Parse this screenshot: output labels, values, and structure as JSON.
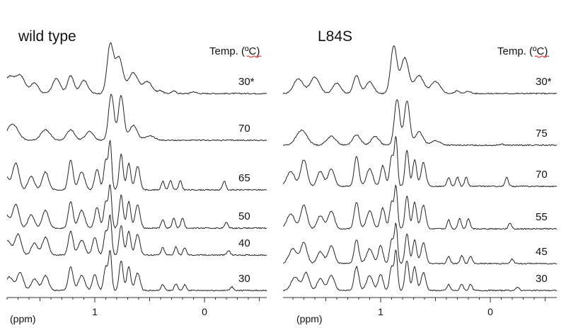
{
  "chart_data": [
    {
      "type": "line",
      "title": "wild type",
      "legend_header": {
        "prefix": "Temp. (",
        "unit": "ºC",
        "suffix": ")"
      },
      "xlabel": "(ppm)",
      "x_reversed": true,
      "xlim": [
        2.0,
        -0.55
      ],
      "x_ticks": [
        1,
        0
      ],
      "series": [
        {
          "name": "30*",
          "peaks": [
            [
              1.78,
              0.55,
              0.06
            ],
            [
              1.68,
              0.6,
              0.06
            ],
            [
              1.55,
              0.35,
              0.05
            ],
            [
              1.35,
              0.5,
              0.05
            ],
            [
              1.22,
              0.6,
              0.04
            ],
            [
              1.1,
              0.45,
              0.05
            ],
            [
              0.86,
              1.6,
              0.04
            ],
            [
              0.78,
              1.2,
              0.05
            ],
            [
              0.65,
              0.7,
              0.06
            ],
            [
              0.52,
              0.4,
              0.06
            ],
            [
              0.4,
              0.1,
              0.03
            ],
            [
              0.28,
              0.08,
              0.03
            ],
            [
              0.1,
              0.06,
              0.03
            ]
          ]
        },
        {
          "name": "70",
          "peaks": [
            [
              1.75,
              0.55,
              0.07
            ],
            [
              1.45,
              0.35,
              0.06
            ],
            [
              1.22,
              0.35,
              0.05
            ],
            [
              1.05,
              0.3,
              0.05
            ],
            [
              0.85,
              1.55,
              0.035
            ],
            [
              0.76,
              1.5,
              0.035
            ],
            [
              0.65,
              0.5,
              0.05
            ],
            [
              0.5,
              0.15,
              0.06
            ]
          ]
        },
        {
          "name": "65",
          "peaks": [
            [
              1.82,
              0.5,
              0.05
            ],
            [
              1.72,
              0.9,
              0.04
            ],
            [
              1.58,
              0.45,
              0.04
            ],
            [
              1.45,
              0.6,
              0.04
            ],
            [
              1.22,
              1.0,
              0.03
            ],
            [
              1.12,
              0.6,
              0.04
            ],
            [
              0.98,
              0.7,
              0.03
            ],
            [
              0.9,
              1.0,
              0.025
            ],
            [
              0.86,
              1.6,
              0.02
            ],
            [
              0.76,
              1.2,
              0.025
            ],
            [
              0.69,
              0.9,
              0.025
            ],
            [
              0.61,
              0.8,
              0.03
            ],
            [
              0.38,
              0.3,
              0.02
            ],
            [
              0.31,
              0.32,
              0.02
            ],
            [
              0.22,
              0.3,
              0.02
            ],
            [
              -0.18,
              0.3,
              0.02
            ]
          ]
        },
        {
          "name": "50",
          "peaks": [
            [
              1.82,
              0.5,
              0.05
            ],
            [
              1.72,
              0.8,
              0.04
            ],
            [
              1.58,
              0.45,
              0.04
            ],
            [
              1.45,
              0.6,
              0.04
            ],
            [
              1.22,
              0.9,
              0.03
            ],
            [
              1.12,
              0.6,
              0.04
            ],
            [
              0.98,
              0.7,
              0.03
            ],
            [
              0.9,
              0.9,
              0.025
            ],
            [
              0.86,
              1.4,
              0.02
            ],
            [
              0.76,
              1.1,
              0.025
            ],
            [
              0.69,
              0.9,
              0.025
            ],
            [
              0.61,
              0.8,
              0.03
            ],
            [
              0.38,
              0.3,
              0.02
            ],
            [
              0.28,
              0.35,
              0.02
            ],
            [
              0.2,
              0.35,
              0.02
            ],
            [
              -0.2,
              0.2,
              0.02
            ]
          ]
        },
        {
          "name": "40",
          "peaks": [
            [
              1.8,
              0.5,
              0.05
            ],
            [
              1.7,
              0.7,
              0.04
            ],
            [
              1.55,
              0.4,
              0.04
            ],
            [
              1.45,
              0.6,
              0.04
            ],
            [
              1.22,
              0.8,
              0.03
            ],
            [
              1.12,
              0.5,
              0.04
            ],
            [
              1.0,
              0.6,
              0.03
            ],
            [
              0.9,
              0.8,
              0.025
            ],
            [
              0.86,
              1.3,
              0.02
            ],
            [
              0.76,
              1.0,
              0.025
            ],
            [
              0.69,
              0.8,
              0.025
            ],
            [
              0.61,
              0.7,
              0.03
            ],
            [
              0.38,
              0.25,
              0.02
            ],
            [
              0.26,
              0.28,
              0.02
            ],
            [
              0.18,
              0.25,
              0.02
            ],
            [
              -0.22,
              0.15,
              0.02
            ]
          ]
        },
        {
          "name": "30",
          "peaks": [
            [
              1.78,
              0.45,
              0.05
            ],
            [
              1.68,
              0.6,
              0.04
            ],
            [
              1.55,
              0.4,
              0.04
            ],
            [
              1.45,
              0.5,
              0.04
            ],
            [
              1.22,
              0.8,
              0.03
            ],
            [
              1.12,
              0.5,
              0.04
            ],
            [
              1.0,
              0.55,
              0.03
            ],
            [
              0.9,
              0.8,
              0.025
            ],
            [
              0.86,
              1.3,
              0.02
            ],
            [
              0.76,
              1.0,
              0.025
            ],
            [
              0.69,
              0.8,
              0.025
            ],
            [
              0.61,
              0.6,
              0.03
            ],
            [
              0.38,
              0.2,
              0.02
            ],
            [
              0.26,
              0.22,
              0.02
            ],
            [
              0.18,
              0.2,
              0.02
            ],
            [
              -0.25,
              0.12,
              0.02
            ]
          ]
        }
      ]
    },
    {
      "type": "line",
      "title": "L84S",
      "legend_header": {
        "prefix": "Temp. (",
        "unit": "ºC",
        "suffix": ")"
      },
      "xlabel": "(ppm)",
      "x_reversed": true,
      "xlim": [
        2.0,
        -0.55
      ],
      "x_ticks": [
        1,
        0
      ],
      "series": [
        {
          "name": "30*",
          "peaks": [
            [
              1.75,
              0.5,
              0.06
            ],
            [
              1.6,
              0.55,
              0.06
            ],
            [
              1.4,
              0.35,
              0.05
            ],
            [
              1.22,
              0.6,
              0.04
            ],
            [
              1.1,
              0.4,
              0.05
            ],
            [
              0.88,
              1.6,
              0.04
            ],
            [
              0.78,
              1.2,
              0.05
            ],
            [
              0.65,
              0.6,
              0.06
            ],
            [
              0.5,
              0.4,
              0.06
            ],
            [
              0.3,
              0.1,
              0.03
            ],
            [
              0.2,
              0.08,
              0.03
            ]
          ]
        },
        {
          "name": "75",
          "peaks": [
            [
              1.72,
              0.5,
              0.07
            ],
            [
              1.45,
              0.3,
              0.06
            ],
            [
              1.22,
              0.35,
              0.05
            ],
            [
              1.05,
              0.3,
              0.05
            ],
            [
              0.85,
              1.55,
              0.035
            ],
            [
              0.76,
              1.5,
              0.035
            ],
            [
              0.65,
              0.45,
              0.05
            ],
            [
              0.5,
              0.15,
              0.06
            ],
            [
              -0.1,
              0.04,
              0.03
            ]
          ]
        },
        {
          "name": "70",
          "peaks": [
            [
              1.82,
              0.5,
              0.05
            ],
            [
              1.7,
              0.9,
              0.04
            ],
            [
              1.55,
              0.5,
              0.04
            ],
            [
              1.45,
              0.6,
              0.04
            ],
            [
              1.22,
              1.0,
              0.03
            ],
            [
              1.1,
              0.6,
              0.04
            ],
            [
              0.98,
              0.7,
              0.03
            ],
            [
              0.9,
              1.0,
              0.025
            ],
            [
              0.86,
              1.6,
              0.02
            ],
            [
              0.76,
              1.2,
              0.025
            ],
            [
              0.69,
              0.9,
              0.025
            ],
            [
              0.61,
              0.8,
              0.03
            ],
            [
              0.38,
              0.3,
              0.02
            ],
            [
              0.3,
              0.32,
              0.02
            ],
            [
              0.22,
              0.3,
              0.02
            ],
            [
              -0.15,
              0.3,
              0.02
            ]
          ]
        },
        {
          "name": "55",
          "peaks": [
            [
              1.82,
              0.5,
              0.05
            ],
            [
              1.7,
              0.8,
              0.04
            ],
            [
              1.55,
              0.45,
              0.04
            ],
            [
              1.45,
              0.6,
              0.04
            ],
            [
              1.22,
              0.9,
              0.03
            ],
            [
              1.1,
              0.6,
              0.04
            ],
            [
              0.98,
              0.7,
              0.03
            ],
            [
              0.9,
              0.9,
              0.025
            ],
            [
              0.86,
              1.4,
              0.02
            ],
            [
              0.76,
              1.1,
              0.025
            ],
            [
              0.69,
              0.9,
              0.025
            ],
            [
              0.61,
              0.8,
              0.03
            ],
            [
              0.38,
              0.3,
              0.02
            ],
            [
              0.28,
              0.35,
              0.02
            ],
            [
              0.2,
              0.35,
              0.02
            ],
            [
              -0.18,
              0.2,
              0.02
            ]
          ]
        },
        {
          "name": "45",
          "peaks": [
            [
              1.8,
              0.5,
              0.05
            ],
            [
              1.7,
              0.7,
              0.04
            ],
            [
              1.55,
              0.4,
              0.04
            ],
            [
              1.45,
              0.6,
              0.04
            ],
            [
              1.22,
              0.8,
              0.03
            ],
            [
              1.1,
              0.5,
              0.04
            ],
            [
              1.0,
              0.6,
              0.03
            ],
            [
              0.9,
              0.8,
              0.025
            ],
            [
              0.86,
              1.3,
              0.02
            ],
            [
              0.76,
              1.0,
              0.025
            ],
            [
              0.69,
              0.8,
              0.025
            ],
            [
              0.61,
              0.7,
              0.03
            ],
            [
              0.38,
              0.25,
              0.02
            ],
            [
              0.26,
              0.28,
              0.02
            ],
            [
              0.18,
              0.25,
              0.02
            ],
            [
              -0.2,
              0.15,
              0.02
            ]
          ]
        },
        {
          "name": "30",
          "peaks": [
            [
              1.78,
              0.45,
              0.05
            ],
            [
              1.68,
              0.6,
              0.04
            ],
            [
              1.55,
              0.4,
              0.04
            ],
            [
              1.45,
              0.5,
              0.04
            ],
            [
              1.22,
              0.8,
              0.03
            ],
            [
              1.1,
              0.5,
              0.04
            ],
            [
              1.0,
              0.55,
              0.03
            ],
            [
              0.9,
              0.8,
              0.025
            ],
            [
              0.86,
              1.3,
              0.02
            ],
            [
              0.76,
              1.0,
              0.025
            ],
            [
              0.69,
              0.8,
              0.025
            ],
            [
              0.61,
              0.6,
              0.03
            ],
            [
              0.38,
              0.2,
              0.02
            ],
            [
              0.26,
              0.22,
              0.02
            ],
            [
              0.18,
              0.2,
              0.02
            ],
            [
              -0.25,
              0.12,
              0.02
            ]
          ]
        }
      ]
    }
  ]
}
